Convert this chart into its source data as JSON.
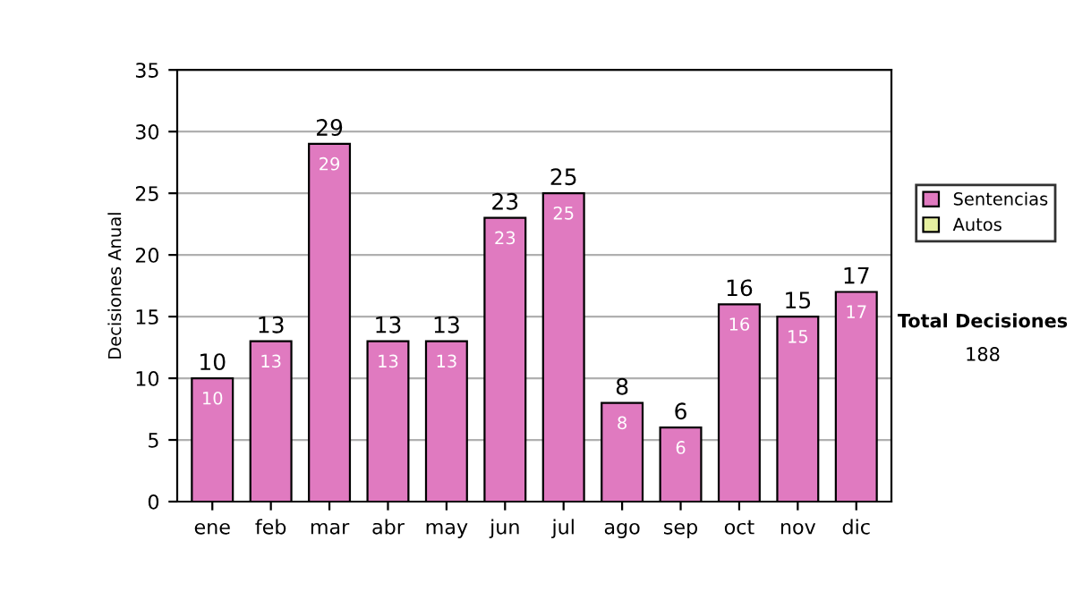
{
  "chart_data": {
    "type": "bar",
    "ylabel": "Decisiones Anual",
    "categories": [
      "ene",
      "feb",
      "mar",
      "abr",
      "may",
      "jun",
      "jul",
      "ago",
      "sep",
      "oct",
      "nov",
      "dic"
    ],
    "series": [
      {
        "name": "Sentencias",
        "color": "#e07ac0",
        "values": [
          10,
          13,
          29,
          13,
          13,
          23,
          25,
          8,
          6,
          16,
          15,
          17
        ]
      },
      {
        "name": "Autos",
        "color": "#e6f0a0",
        "values": [
          null,
          null,
          null,
          null,
          null,
          null,
          null,
          null,
          null,
          null,
          null,
          null
        ]
      }
    ],
    "stacked": true,
    "totals": [
      "10",
      "13",
      "29",
      "13",
      "13",
      "23",
      "25",
      "8",
      "6",
      "16",
      "15",
      "17"
    ],
    "data_labels": true,
    "ylim": [
      0,
      35
    ],
    "yticks": [
      0,
      5,
      10,
      15,
      20,
      25,
      30,
      35
    ],
    "grid": "y",
    "legend": "right",
    "annotations": [
      "Total Decisiones",
      "188"
    ]
  }
}
